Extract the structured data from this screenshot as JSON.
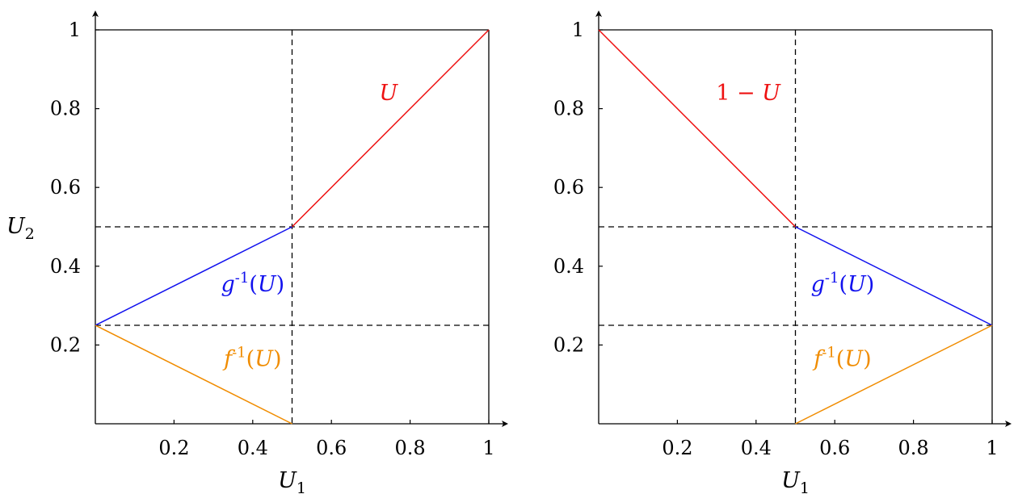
{
  "colors": {
    "red": "#ee1111",
    "blue": "#1111ee",
    "orange": "#f08c00",
    "axis": "#000000"
  },
  "chart_data": [
    {
      "type": "line",
      "title": "",
      "xlabel": "U1",
      "ylabel": "U2",
      "xlim": [
        0,
        1
      ],
      "ylim": [
        0,
        1
      ],
      "xticks": [
        "0.2",
        "0.4",
        "0.6",
        "0.8",
        "1"
      ],
      "yticks": [
        "0.2",
        "0.4",
        "0.6",
        "0.8",
        "1"
      ],
      "grid": false,
      "legend": "none",
      "dashed_lines": [
        {
          "orientation": "vertical",
          "value": 0.5
        },
        {
          "orientation": "horizontal",
          "value": 0.5
        },
        {
          "orientation": "horizontal",
          "value": 0.25
        }
      ],
      "series": [
        {
          "name": "U",
          "color": "red",
          "x": [
            0.5,
            1
          ],
          "y": [
            0.5,
            1
          ]
        },
        {
          "name": "g^{-1}(U)",
          "color": "blue",
          "x": [
            0,
            0.5
          ],
          "y": [
            0.25,
            0.5
          ]
        },
        {
          "name": "f^{-1}(U)",
          "color": "orange",
          "x": [
            0,
            0.5
          ],
          "y": [
            0.25,
            0
          ]
        }
      ],
      "annotations": [
        {
          "text": "U",
          "series": "U",
          "color": "red",
          "x": 0.745,
          "y": 0.84
        },
        {
          "text": "g^{-1}(U)",
          "series": "g^{-1}(U)",
          "color": "blue",
          "x": 0.4,
          "y": 0.355
        },
        {
          "text": "f^{-1}(U)",
          "series": "f^{-1}(U)",
          "color": "orange",
          "x": 0.4,
          "y": 0.165
        }
      ]
    },
    {
      "type": "line",
      "title": "",
      "xlabel": "U1",
      "ylabel": "",
      "xlim": [
        0,
        1
      ],
      "ylim": [
        0,
        1
      ],
      "xticks": [
        "0.2",
        "0.4",
        "0.6",
        "0.8",
        "1"
      ],
      "yticks": [
        "0.2",
        "0.4",
        "0.6",
        "0.8",
        "1"
      ],
      "grid": false,
      "legend": "none",
      "dashed_lines": [
        {
          "orientation": "vertical",
          "value": 0.5
        },
        {
          "orientation": "horizontal",
          "value": 0.5
        },
        {
          "orientation": "horizontal",
          "value": 0.25
        }
      ],
      "series": [
        {
          "name": "1 − U",
          "color": "red",
          "x": [
            0,
            0.5
          ],
          "y": [
            1,
            0.5
          ]
        },
        {
          "name": "g^{-1}(U)",
          "color": "blue",
          "x": [
            0.5,
            1
          ],
          "y": [
            0.5,
            0.25
          ]
        },
        {
          "name": "f^{-1}(U)",
          "color": "orange",
          "x": [
            0.5,
            1
          ],
          "y": [
            0,
            0.25
          ]
        }
      ],
      "annotations": [
        {
          "text": "1 − U",
          "series": "1 − U",
          "color": "red",
          "x": 0.38,
          "y": 0.84
        },
        {
          "text": "g^{-1}(U)",
          "series": "g^{-1}(U)",
          "color": "blue",
          "x": 0.62,
          "y": 0.355
        },
        {
          "text": "f^{-1}(U)",
          "series": "f^{-1}(U)",
          "color": "orange",
          "x": 0.62,
          "y": 0.165
        }
      ]
    }
  ]
}
